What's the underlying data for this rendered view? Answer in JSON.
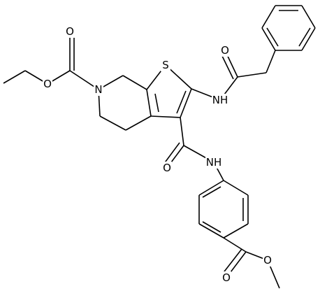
{
  "atoms": [
    {
      "label": "O"
    },
    {
      "label": "O"
    },
    {
      "label": "N"
    },
    {
      "label": "S"
    },
    {
      "label": "O"
    },
    {
      "label": "NH"
    },
    {
      "label": "O"
    },
    {
      "label": "NH"
    },
    {
      "label": "O"
    },
    {
      "label": "O"
    }
  ]
}
